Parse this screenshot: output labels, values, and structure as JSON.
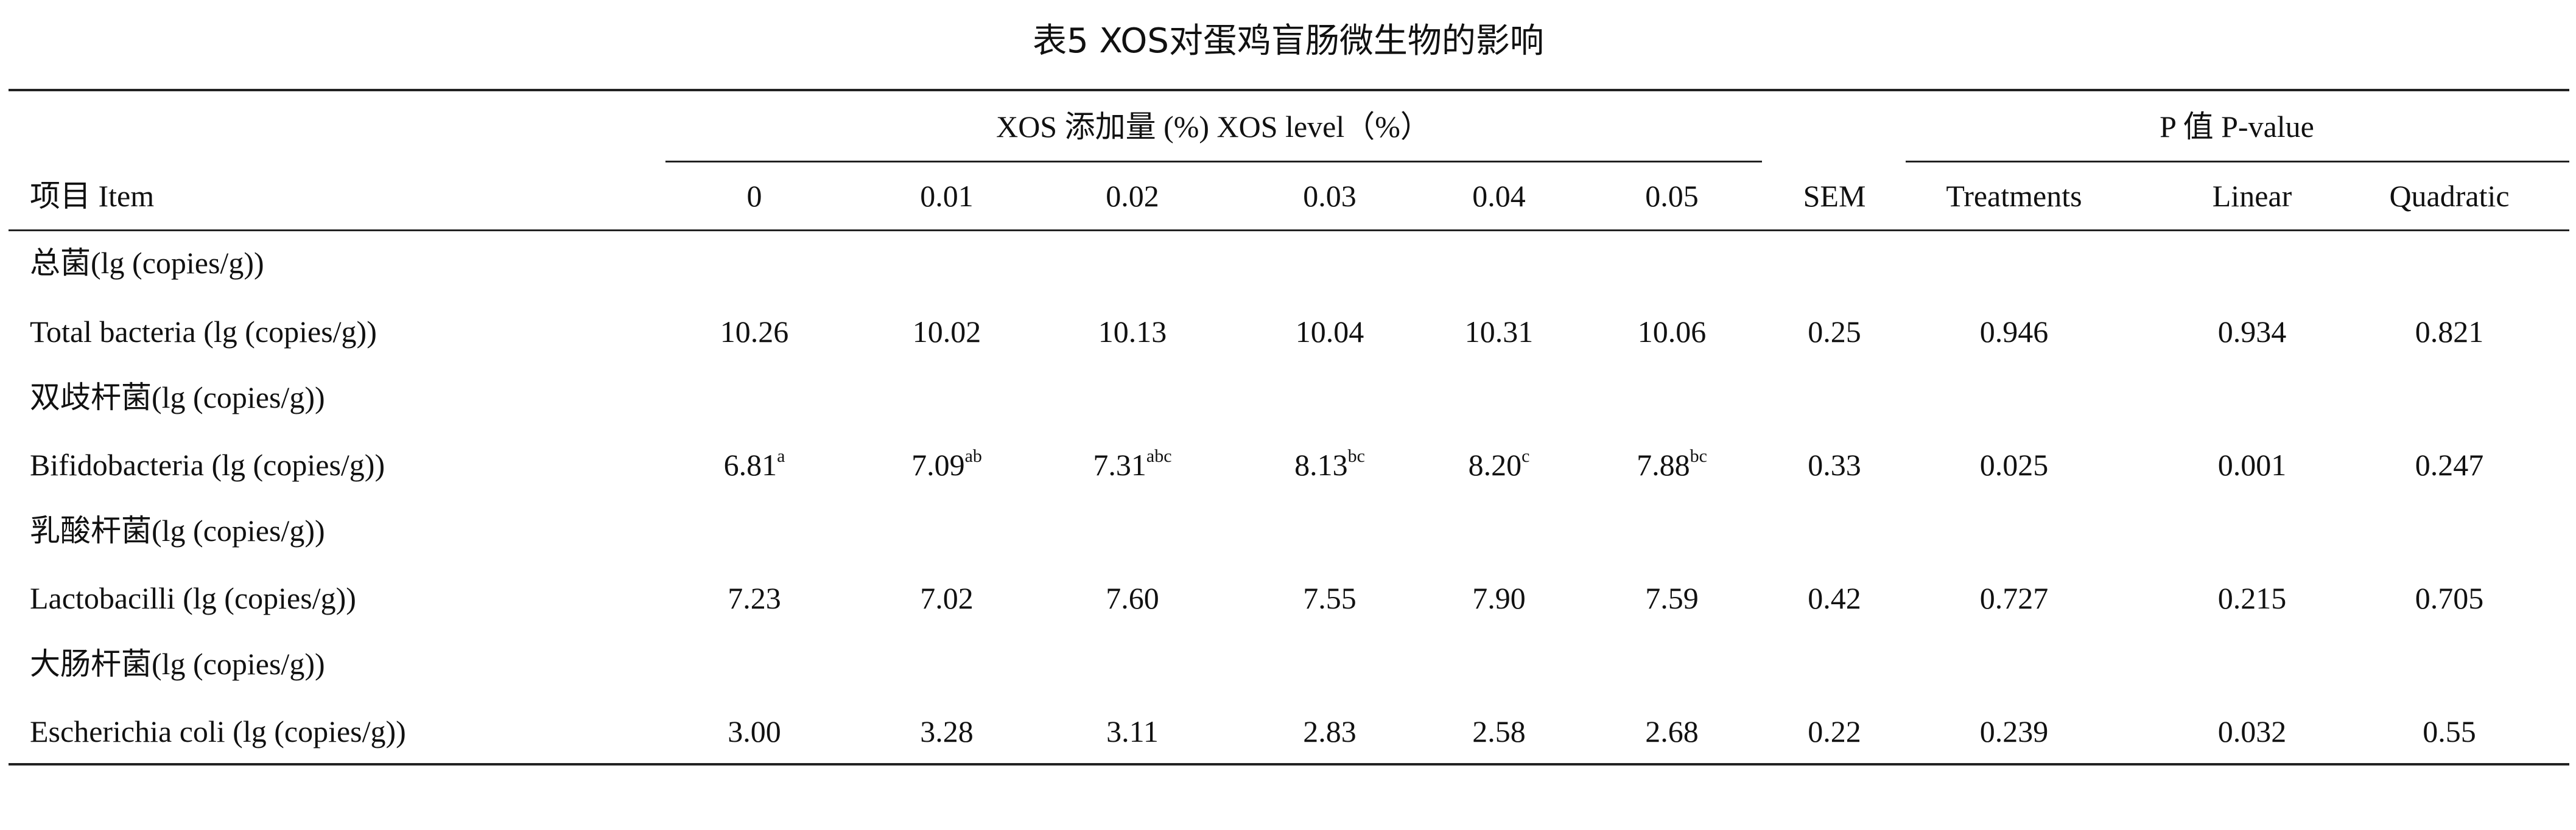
{
  "title": "表5 XOS对蛋鸡盲肠微生物的影响",
  "header": {
    "item": "项目 Item",
    "xos_group": "XOS 添加量 (%) XOS level（%）",
    "p_group": "P 值  P-value",
    "columns": [
      "0",
      "0.01",
      "0.02",
      "0.03",
      "0.04",
      "0.05",
      "SEM",
      "Treatments",
      "Linear",
      "Quadratic"
    ]
  },
  "rows": [
    {
      "label": "总菌(lg (copies/g))"
    },
    {
      "label": "Total bacteria (lg (copies/g))",
      "cells": [
        "10.26",
        "10.02",
        "10.13",
        "10.04",
        "10.31",
        "10.06",
        "0.25",
        "0.946",
        "0.934",
        "0.821"
      ]
    },
    {
      "label": "双歧杆菌(lg (copies/g))"
    },
    {
      "label": "Bifidobacteria (lg (copies/g))",
      "cells": [
        {
          "value": "6.81",
          "sup": "a"
        },
        {
          "value": "7.09",
          "sup": "ab"
        },
        {
          "value": "7.31",
          "sup": "abc"
        },
        {
          "value": "8.13",
          "sup": "bc"
        },
        {
          "value": "8.20",
          "sup": "c"
        },
        {
          "value": "7.88",
          "sup": "bc"
        },
        "0.33",
        "0.025",
        "0.001",
        "0.247"
      ]
    },
    {
      "label": "乳酸杆菌(lg (copies/g))"
    },
    {
      "label": "Lactobacilli (lg (copies/g))",
      "cells": [
        "7.23",
        "7.02",
        "7.60",
        "7.55",
        "7.90",
        "7.59",
        "0.42",
        "0.727",
        "0.215",
        "0.705"
      ]
    },
    {
      "label": "大肠杆菌(lg (copies/g))"
    },
    {
      "label": "Escherichia coli (lg (copies/g))",
      "cells": [
        "3.00",
        "3.28",
        "3.11",
        "2.83",
        "2.58",
        "2.68",
        "0.22",
        "0.239",
        "0.032",
        "0.55"
      ]
    }
  ]
}
